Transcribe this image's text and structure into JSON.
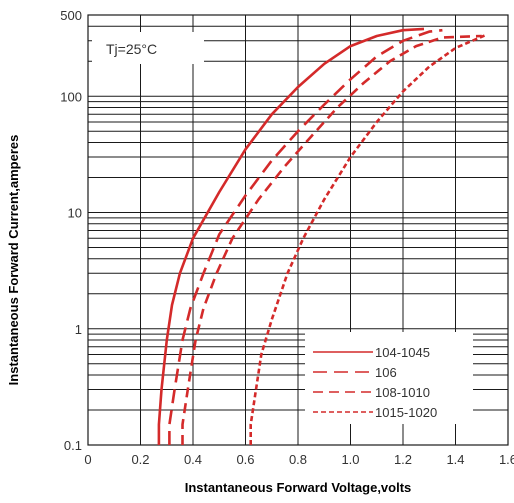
{
  "chart_data": {
    "type": "line",
    "title": "",
    "xlabel": "Instantaneous Forward Voltage,volts",
    "ylabel": "Instantaneous Forward Current,amperes",
    "annotation": "Tj=25°C",
    "xlim": [
      0,
      1.6
    ],
    "ylim": [
      0.1,
      500
    ],
    "yscale": "log",
    "grid": true,
    "legend_position": "bottom-right",
    "x_ticks": [
      "0",
      "0.2",
      "0.4",
      "0.6",
      "0.8",
      "1.0",
      "1.2",
      "1.4",
      "1.6"
    ],
    "y_ticks": [
      "0.1",
      "1",
      "10",
      "100",
      "500"
    ],
    "series": [
      {
        "name": "104-1045",
        "style": "solid",
        "color": "#d42a2a",
        "points": [
          [
            0.27,
            0.1
          ],
          [
            0.27,
            0.15
          ],
          [
            0.28,
            0.3
          ],
          [
            0.3,
            0.8
          ],
          [
            0.32,
            1.6
          ],
          [
            0.35,
            3
          ],
          [
            0.4,
            6
          ],
          [
            0.5,
            15
          ],
          [
            0.6,
            35
          ],
          [
            0.7,
            70
          ],
          [
            0.8,
            120
          ],
          [
            0.9,
            190
          ],
          [
            1.0,
            270
          ],
          [
            1.1,
            330
          ],
          [
            1.2,
            370
          ],
          [
            1.28,
            380
          ]
        ]
      },
      {
        "name": "106",
        "style": "dash",
        "color": "#d42a2a",
        "points": [
          [
            0.31,
            0.1
          ],
          [
            0.31,
            0.15
          ],
          [
            0.33,
            0.3
          ],
          [
            0.36,
            0.8
          ],
          [
            0.39,
            1.5
          ],
          [
            0.44,
            3
          ],
          [
            0.5,
            6.5
          ],
          [
            0.6,
            14
          ],
          [
            0.7,
            28
          ],
          [
            0.8,
            50
          ],
          [
            0.9,
            85
          ],
          [
            1.0,
            140
          ],
          [
            1.1,
            220
          ],
          [
            1.2,
            300
          ],
          [
            1.3,
            360
          ],
          [
            1.35,
            370
          ]
        ]
      },
      {
        "name": "108-1010",
        "style": "dash-medium",
        "color": "#d42a2a",
        "points": [
          [
            0.36,
            0.1
          ],
          [
            0.36,
            0.15
          ],
          [
            0.38,
            0.3
          ],
          [
            0.41,
            0.8
          ],
          [
            0.44,
            1.5
          ],
          [
            0.49,
            3
          ],
          [
            0.55,
            6
          ],
          [
            0.65,
            13
          ],
          [
            0.75,
            25
          ],
          [
            0.85,
            45
          ],
          [
            0.95,
            80
          ],
          [
            1.05,
            130
          ],
          [
            1.15,
            200
          ],
          [
            1.25,
            270
          ],
          [
            1.35,
            320
          ],
          [
            1.5,
            330
          ]
        ]
      },
      {
        "name": "1015-1020",
        "style": "dot-dash",
        "color": "#d42a2a",
        "points": [
          [
            0.62,
            0.1
          ],
          [
            0.62,
            0.15
          ],
          [
            0.64,
            0.3
          ],
          [
            0.66,
            0.6
          ],
          [
            0.7,
            1.2
          ],
          [
            0.76,
            3
          ],
          [
            0.82,
            6
          ],
          [
            0.9,
            13
          ],
          [
            1.0,
            30
          ],
          [
            1.1,
            60
          ],
          [
            1.2,
            110
          ],
          [
            1.3,
            180
          ],
          [
            1.4,
            260
          ],
          [
            1.52,
            340
          ]
        ]
      }
    ]
  }
}
